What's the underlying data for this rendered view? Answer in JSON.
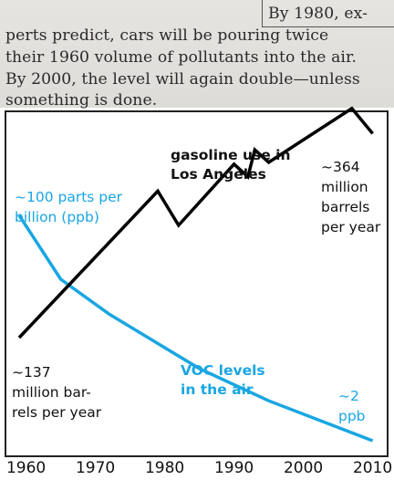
{
  "clipping": {
    "lines": [
      "By 1980, ex-",
      "perts predict, cars will be pouring twice",
      "their 1960 volume of pollutants into the air.",
      "By 2000, the level will again double—unless",
      "something is done."
    ]
  },
  "chart_data": {
    "type": "line",
    "x_ticks": [
      1960,
      1970,
      1980,
      1990,
      2000,
      2010
    ],
    "xlim": [
      1955,
      2012
    ],
    "colors": {
      "gasoline": "#000000",
      "voc": "#19a6e2"
    },
    "series": [
      {
        "name": "gasoline use in Los Angeles",
        "unit_label_start": "~137 million barrels per year",
        "x": [
          1959,
          1979,
          1982,
          1990,
          1992,
          1993,
          1995,
          2007,
          2010
        ],
        "y": [
          137,
          300,
          262,
          330,
          316,
          346,
          332,
          392,
          364
        ]
      },
      {
        "name": "VOC levels in the air",
        "x": [
          1959,
          1965,
          1972,
          1985,
          1995,
          2010
        ],
        "y": [
          100,
          33,
          18,
          7,
          4,
          2
        ]
      }
    ],
    "annotations": {
      "gasoline_title": [
        "gasoline use in",
        "Los Angeles"
      ],
      "gasoline_end": [
        "~364",
        "million",
        "barrels",
        "per year"
      ],
      "gasoline_start": [
        "~137",
        "million bar-",
        "rels per year"
      ],
      "voc_start": [
        "~100 parts per",
        "billion (ppb)"
      ],
      "voc_title": [
        "VOC levels",
        "in the air"
      ],
      "voc_end": [
        "~2",
        "ppb"
      ]
    }
  }
}
